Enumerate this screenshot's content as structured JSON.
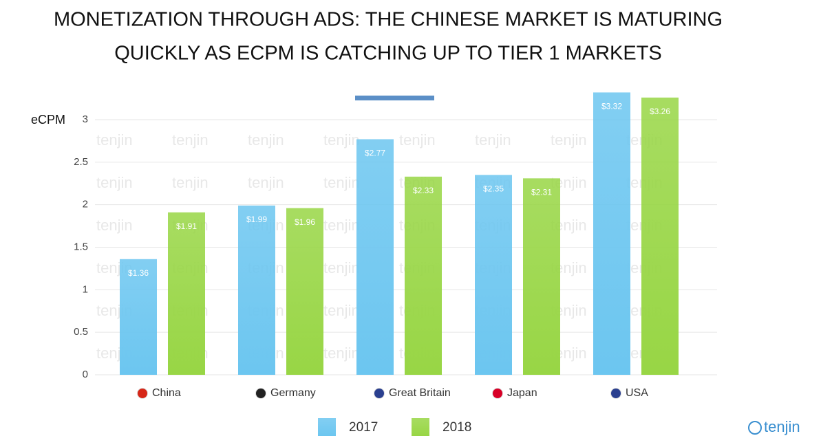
{
  "chart_data": {
    "type": "bar",
    "title_lines": [
      "MONETIZATION THROUGH ADS: THE CHINESE MARKET IS MATURING",
      "QUICKLY AS ECPM IS CATCHING UP TO TIER 1 MARKETS"
    ],
    "y_label": "eCPM",
    "categories": [
      "China",
      "Germany",
      "Great Britain",
      "Japan",
      "USA"
    ],
    "series": [
      {
        "name": "2017",
        "color": "#6cc6f0",
        "values": [
          1.36,
          1.99,
          2.77,
          2.35,
          3.32
        ],
        "value_labels": [
          "$1.36",
          "$1.99",
          "$2.77",
          "$2.35",
          "$3.32"
        ]
      },
      {
        "name": "2018",
        "color": "#98d645",
        "values": [
          1.91,
          1.96,
          2.33,
          2.31,
          3.26
        ],
        "value_labels": [
          "$1.91",
          "$1.96",
          "$2.33",
          "$2.31",
          "$3.26"
        ]
      }
    ],
    "ylim": [
      0,
      3
    ],
    "yticks": [
      0,
      0.5,
      1,
      1.5,
      2,
      2.5,
      3
    ],
    "grid": true,
    "legend": "bottom",
    "brand": "tenjin"
  }
}
